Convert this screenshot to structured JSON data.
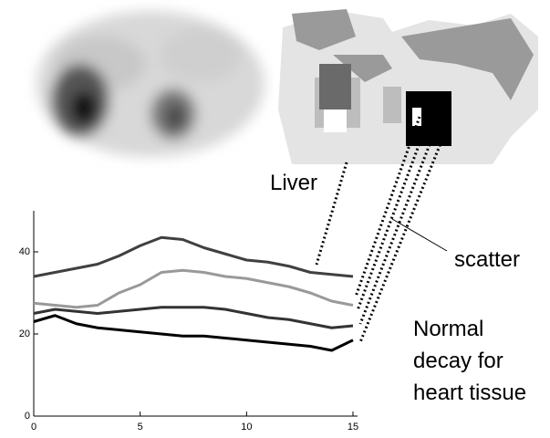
{
  "chart_data": {
    "type": "line",
    "x": [
      0,
      1,
      2,
      3,
      4,
      5,
      6,
      7,
      8,
      9,
      10,
      11,
      12,
      13,
      14,
      15
    ],
    "series": [
      {
        "color": "#404040",
        "values": [
          34,
          35,
          36,
          37,
          39,
          41.5,
          43.5,
          43,
          41,
          39.5,
          38,
          37.5,
          36.5,
          35,
          34.5,
          34
        ]
      },
      {
        "color": "#999999",
        "values": [
          27.5,
          27,
          26.5,
          27,
          30,
          32,
          35,
          35.5,
          35,
          34,
          33.5,
          32.5,
          31.5,
          30,
          28,
          27
        ]
      },
      {
        "color": "#333333",
        "values": [
          25,
          26,
          25.5,
          25,
          25.5,
          26,
          26.5,
          26.5,
          26.5,
          26,
          25,
          24,
          23.5,
          22.5,
          21.5,
          22
        ]
      },
      {
        "color": "#000000",
        "values": [
          23,
          24.5,
          22.5,
          21.5,
          21,
          20.5,
          20,
          19.5,
          19.5,
          19,
          18.5,
          18,
          17.5,
          17,
          16,
          18.5
        ]
      }
    ],
    "xlim": [
      0,
      15
    ],
    "xticks": [
      0,
      5,
      10,
      15
    ],
    "ylim": [
      0,
      50
    ],
    "yticks": [
      0,
      20,
      40
    ],
    "annotations": [
      "Liver",
      "scatter",
      "Normal",
      "decay for",
      "heart tissue"
    ]
  }
}
